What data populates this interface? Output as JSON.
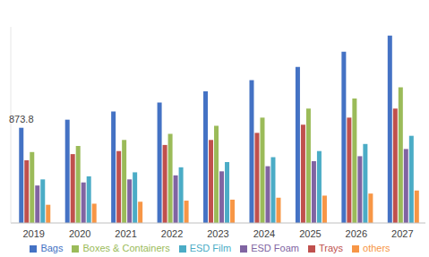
{
  "chart_data": {
    "type": "bar",
    "categories": [
      "2019",
      "2020",
      "2021",
      "2022",
      "2023",
      "2024",
      "2025",
      "2026",
      "2027"
    ],
    "series": [
      {
        "name": "Bags",
        "color": "#4472c4",
        "values": [
          873.8,
          948,
          1023,
          1106,
          1208,
          1311,
          1432,
          1571,
          1720
        ],
        "value_labels": [
          "873.8",
          null,
          null,
          null,
          null,
          null,
          null,
          null,
          null
        ]
      },
      {
        "name": "Trays",
        "color": "#c0504d",
        "values": [
          576,
          632,
          660,
          716,
          762,
          827,
          902,
          967,
          1050
        ]
      },
      {
        "name": "Boxes & Containers",
        "color": "#9bbb59",
        "values": [
          651,
          707,
          762,
          818,
          892,
          967,
          1050,
          1143,
          1246
        ]
      },
      {
        "name": "ESD Foam",
        "color": "#8064a2",
        "values": [
          344,
          372,
          400,
          437,
          474,
          521,
          567,
          613,
          679
        ]
      },
      {
        "name": "ESD Film",
        "color": "#4bacc6",
        "values": [
          400,
          428,
          465,
          511,
          558,
          604,
          660,
          725,
          800
        ]
      },
      {
        "name": "others",
        "color": "#f79646",
        "values": [
          167,
          177,
          195,
          205,
          214,
          232,
          251,
          270,
          298
        ]
      }
    ],
    "ylim": [
      0,
      1800
    ],
    "yticks": [],
    "grid": false,
    "legend": "bottom",
    "tick_labels": "x",
    "data_labels": true
  }
}
